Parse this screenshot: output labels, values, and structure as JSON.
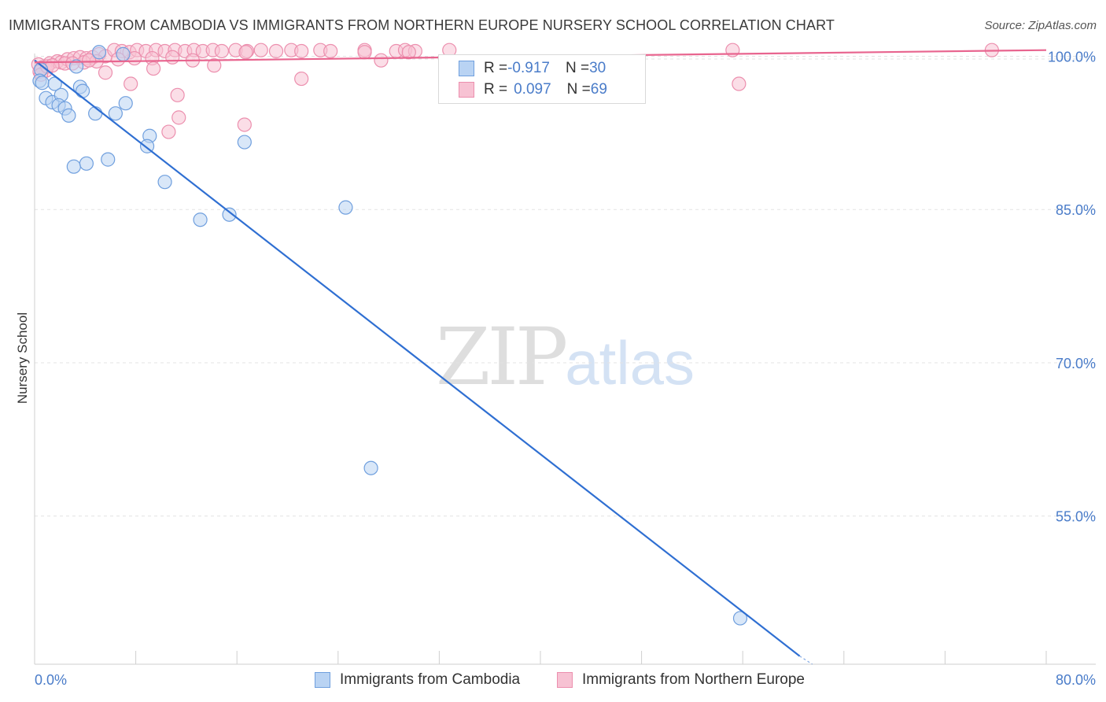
{
  "header": {
    "title": "IMMIGRANTS FROM CAMBODIA VS IMMIGRANTS FROM NORTHERN EUROPE NURSERY SCHOOL CORRELATION CHART",
    "source": "Source: ZipAtlas.com"
  },
  "watermark": {
    "zip": "ZIP",
    "atlas": "atlas"
  },
  "legend_top": {
    "rows": [
      {
        "r_label": "R = ",
        "r_value": "-0.917",
        "n_label": "N = ",
        "n_value": "30"
      },
      {
        "r_label": "R = ",
        "r_value": "0.097",
        "n_label": "N = ",
        "n_value": "69"
      }
    ]
  },
  "legend_bottom": {
    "series1": "Immigrants from Cambodia",
    "series2": "Immigrants from Northern Europe"
  },
  "colors": {
    "blue_fill": "#b9d3f3",
    "blue_stroke": "#6f9fde",
    "blue_line": "#2f6fd2",
    "pink_fill": "#f7c2d3",
    "pink_stroke": "#ec8fae",
    "pink_line": "#e8658f",
    "tick_text": "#4a7cc9",
    "grid": "#e3e3e3"
  },
  "chart_data": {
    "type": "scatter",
    "title": "IMMIGRANTS FROM CAMBODIA VS IMMIGRANTS FROM NORTHERN EUROPE NURSERY SCHOOL CORRELATION CHART",
    "xlabel": "",
    "ylabel": "Nursery School",
    "xlim": [
      0,
      80
    ],
    "ylim": [
      40.5,
      101.5
    ],
    "x_tick_labels": [
      "0.0%",
      "80.0%"
    ],
    "y_ticks": [
      {
        "value": 100,
        "label": "100.0%"
      },
      {
        "value": 85,
        "label": "85.0%"
      },
      {
        "value": 70,
        "label": "70.0%"
      },
      {
        "value": 55,
        "label": "55.0%"
      }
    ],
    "grid": true,
    "legend_position": "bottom",
    "series": [
      {
        "name": "Immigrants from Cambodia",
        "r": -0.917,
        "n": 30,
        "trend": {
          "x1": 0.0,
          "y1": 99.6,
          "x2": 60.5,
          "y2": 41.3,
          "dash_to_x": 61.5,
          "dash_to_y": 40.5
        },
        "points": [
          [
            0.5,
            98.7
          ],
          [
            0.4,
            97.6
          ],
          [
            0.6,
            97.4
          ],
          [
            1.6,
            97.3
          ],
          [
            0.9,
            95.9
          ],
          [
            1.4,
            95.5
          ],
          [
            2.1,
            96.2
          ],
          [
            1.9,
            95.2
          ],
          [
            2.4,
            94.9
          ],
          [
            3.3,
            99.0
          ],
          [
            3.6,
            97.0
          ],
          [
            3.8,
            96.6
          ],
          [
            5.1,
            100.4
          ],
          [
            7.0,
            100.2
          ],
          [
            2.7,
            94.2
          ],
          [
            4.8,
            94.4
          ],
          [
            6.4,
            94.4
          ],
          [
            7.2,
            95.4
          ],
          [
            9.1,
            92.2
          ],
          [
            8.9,
            91.2
          ],
          [
            10.3,
            87.7
          ],
          [
            3.1,
            89.2
          ],
          [
            4.1,
            89.5
          ],
          [
            5.8,
            89.9
          ],
          [
            13.1,
            84.0
          ],
          [
            15.4,
            84.5
          ],
          [
            16.6,
            91.6
          ],
          [
            24.6,
            85.2
          ],
          [
            26.6,
            59.7
          ],
          [
            55.8,
            45.0
          ]
        ]
      },
      {
        "name": "Immigrants from Northern Europe",
        "r": 0.097,
        "n": 69,
        "trend": {
          "x1": 0.0,
          "y1": 99.4,
          "x2": 80.0,
          "y2": 100.6
        },
        "points": [
          [
            0.3,
            99.2
          ],
          [
            0.6,
            98.9
          ],
          [
            0.9,
            98.6
          ],
          [
            0.4,
            98.5
          ],
          [
            1.2,
            99.3
          ],
          [
            1.8,
            99.5
          ],
          [
            2.1,
            99.4
          ],
          [
            2.6,
            99.7
          ],
          [
            3.1,
            99.8
          ],
          [
            3.6,
            99.9
          ],
          [
            4.1,
            99.8
          ],
          [
            4.6,
            99.9
          ],
          [
            5.1,
            100.2
          ],
          [
            5.6,
            100.0
          ],
          [
            6.3,
            100.6
          ],
          [
            6.9,
            100.5
          ],
          [
            7.5,
            100.4
          ],
          [
            8.1,
            100.6
          ],
          [
            8.8,
            100.5
          ],
          [
            9.6,
            100.6
          ],
          [
            10.3,
            100.5
          ],
          [
            11.1,
            100.6
          ],
          [
            11.9,
            100.5
          ],
          [
            12.6,
            100.6
          ],
          [
            13.3,
            100.5
          ],
          [
            14.1,
            100.6
          ],
          [
            14.8,
            100.5
          ],
          [
            15.9,
            100.6
          ],
          [
            16.8,
            100.5
          ],
          [
            17.9,
            100.6
          ],
          [
            19.1,
            100.5
          ],
          [
            20.3,
            100.6
          ],
          [
            21.1,
            100.5
          ],
          [
            22.6,
            100.6
          ],
          [
            23.4,
            100.5
          ],
          [
            26.1,
            100.6
          ],
          [
            28.6,
            100.5
          ],
          [
            29.3,
            100.6
          ],
          [
            32.8,
            100.6
          ],
          [
            2.4,
            99.3
          ],
          [
            3.9,
            99.4
          ],
          [
            4.9,
            99.5
          ],
          [
            6.6,
            99.7
          ],
          [
            7.9,
            99.8
          ],
          [
            9.3,
            99.8
          ],
          [
            10.9,
            99.9
          ],
          [
            5.6,
            98.4
          ],
          [
            9.4,
            98.8
          ],
          [
            14.2,
            99.1
          ],
          [
            26.1,
            100.4
          ],
          [
            27.4,
            99.6
          ],
          [
            30.1,
            100.5
          ],
          [
            55.2,
            100.6
          ],
          [
            55.7,
            97.3
          ],
          [
            75.7,
            100.6
          ],
          [
            7.6,
            97.3
          ],
          [
            11.3,
            96.2
          ],
          [
            16.6,
            93.3
          ],
          [
            10.6,
            92.6
          ],
          [
            11.4,
            94.0
          ],
          [
            21.1,
            97.8
          ],
          [
            29.6,
            100.4
          ],
          [
            0.5,
            98.2
          ],
          [
            1.0,
            99.0
          ],
          [
            1.4,
            99.1
          ],
          [
            3.0,
            99.3
          ],
          [
            4.3,
            99.6
          ],
          [
            12.5,
            99.6
          ],
          [
            16.7,
            100.4
          ]
        ]
      }
    ]
  }
}
